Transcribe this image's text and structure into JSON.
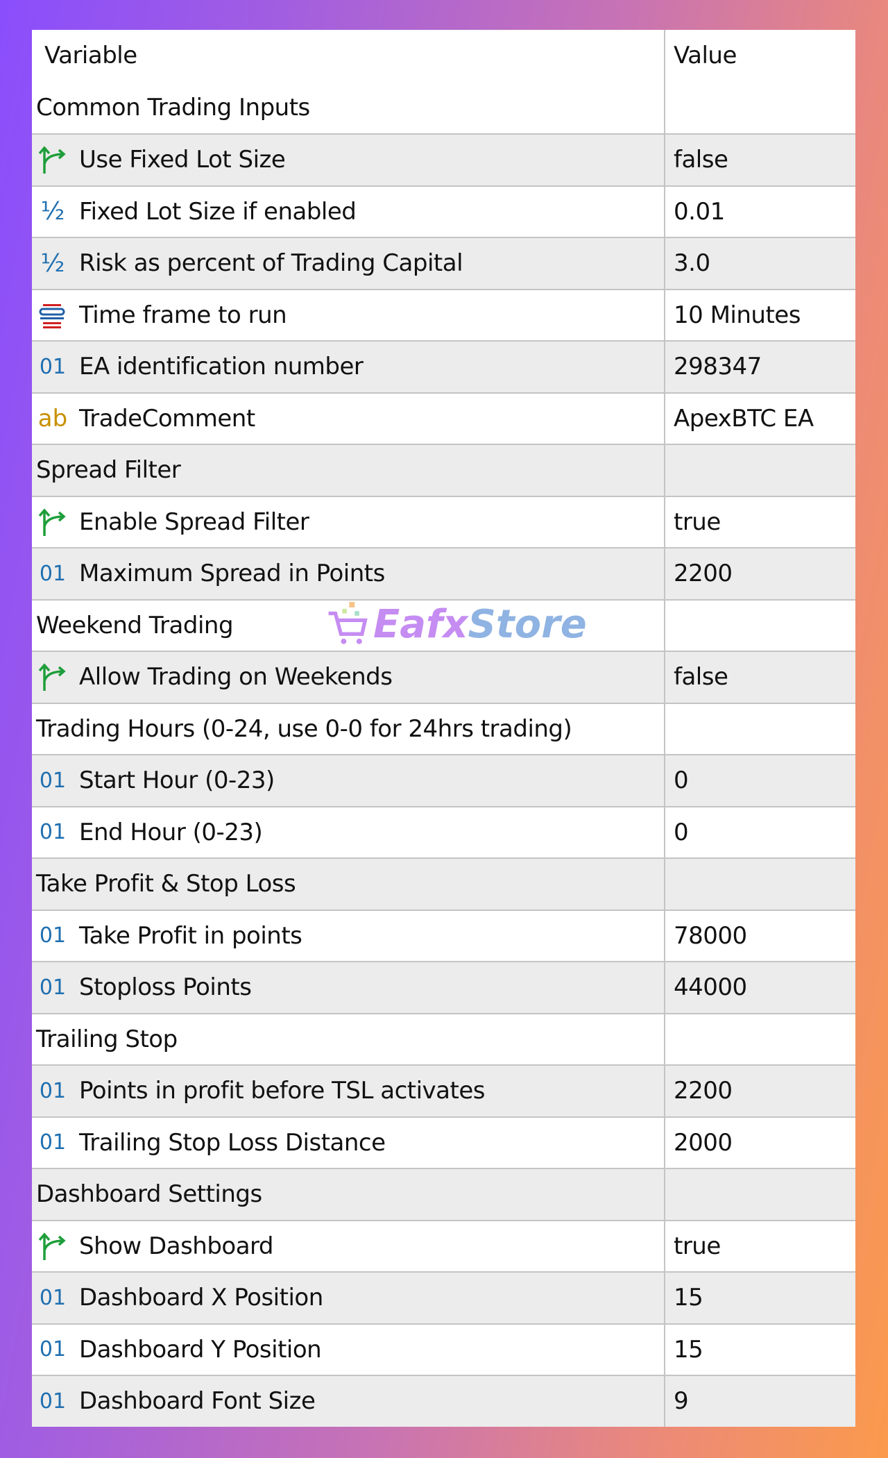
{
  "header": {
    "variable": "Variable",
    "value": "Value"
  },
  "colors": {
    "group_bg": "#ffffff",
    "alt_row": "#ececec",
    "bool_icon": "#1e9e3a",
    "num_icon": "#1f6fb0",
    "string_icon": "#c89000"
  },
  "watermark": "EafxStore",
  "rows": [
    {
      "type": "group",
      "label": "Common Trading Inputs"
    },
    {
      "icon": "bool-arrow-icon",
      "label": "Use Fixed Lot Size",
      "value": "false"
    },
    {
      "icon": "half-icon",
      "label": "Fixed Lot Size if enabled",
      "value": "0.01"
    },
    {
      "icon": "half-icon",
      "label": "Risk as percent of Trading Capital",
      "value": "3.0"
    },
    {
      "icon": "enum-icon",
      "label": "Time frame to run",
      "value": "10 Minutes"
    },
    {
      "icon": "int-icon",
      "label": "EA identification number",
      "value": "298347"
    },
    {
      "icon": "string-icon",
      "label": "TradeComment",
      "value": "ApexBTC EA"
    },
    {
      "type": "group",
      "label": "Spread Filter"
    },
    {
      "icon": "bool-arrow-icon",
      "label": "Enable Spread Filter",
      "value": "true"
    },
    {
      "icon": "int-icon",
      "label": "Maximum Spread in Points",
      "value": "2200"
    },
    {
      "type": "group",
      "label": "Weekend Trading"
    },
    {
      "icon": "bool-arrow-icon",
      "label": "Allow Trading on Weekends",
      "value": "false"
    },
    {
      "type": "group",
      "label": "Trading Hours (0-24, use 0-0 for 24hrs trading)"
    },
    {
      "icon": "int-icon",
      "label": "Start Hour (0-23)",
      "value": "0"
    },
    {
      "icon": "int-icon",
      "label": "End Hour (0-23)",
      "value": "0"
    },
    {
      "type": "group",
      "label": "Take Profit & Stop Loss"
    },
    {
      "icon": "int-icon",
      "label": "Take Profit in points",
      "value": "78000"
    },
    {
      "icon": "int-icon",
      "label": "Stoploss Points",
      "value": "44000"
    },
    {
      "type": "group",
      "label": "Trailing Stop"
    },
    {
      "icon": "int-icon",
      "label": "Points in profit before TSL activates",
      "value": "2200"
    },
    {
      "icon": "int-icon",
      "label": "Trailing Stop Loss Distance",
      "value": "2000"
    },
    {
      "type": "group",
      "label": "Dashboard Settings"
    },
    {
      "icon": "bool-arrow-icon",
      "label": "Show Dashboard",
      "value": "true"
    },
    {
      "icon": "int-icon",
      "label": "Dashboard X Position",
      "value": "15"
    },
    {
      "icon": "int-icon",
      "label": "Dashboard Y Position",
      "value": "15"
    },
    {
      "icon": "int-icon",
      "label": "Dashboard Font Size",
      "value": "9"
    }
  ]
}
